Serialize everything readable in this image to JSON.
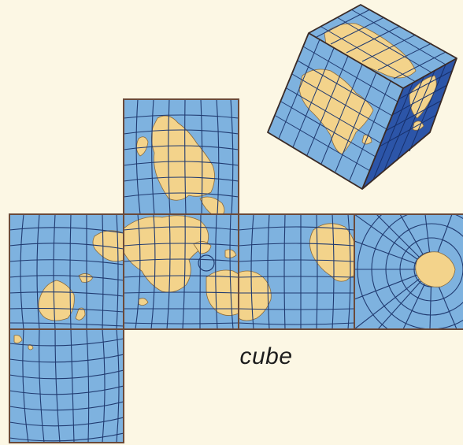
{
  "caption": "cube",
  "colors": {
    "background": "#fcf7e4",
    "ocean": "#7eb2df",
    "ocean_dark": "#2c55a8",
    "land": "#f3d38b",
    "grid": "#203a70",
    "face_border": "#6b4a3a"
  },
  "net_faces": [
    "top",
    "left",
    "front",
    "right",
    "back",
    "bottom"
  ],
  "cube_faces": [
    "top",
    "left",
    "right"
  ]
}
